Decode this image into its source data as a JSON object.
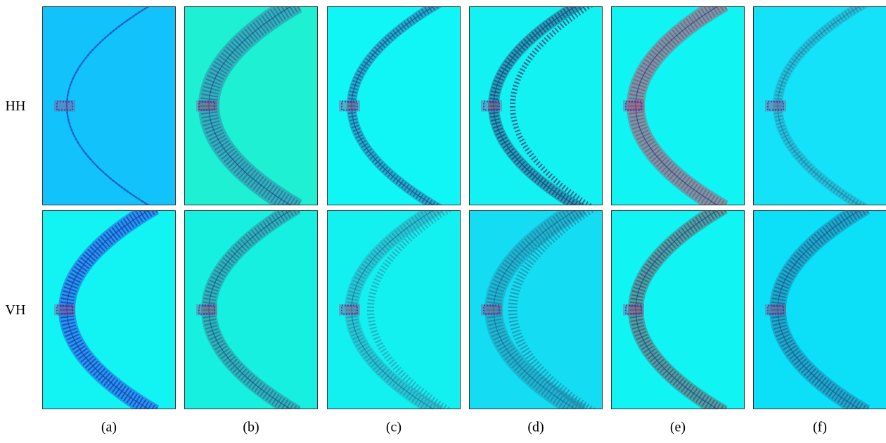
{
  "rows": [
    "HH",
    "VH"
  ],
  "columns": [
    "(a)",
    "(b)",
    "(c)",
    "(d)",
    "(e)",
    "(f)"
  ]
}
